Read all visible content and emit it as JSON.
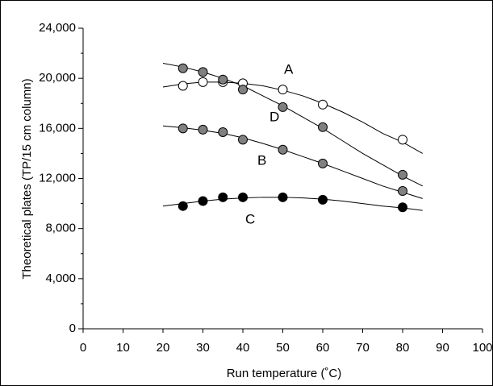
{
  "chart_data": {
    "type": "scatter",
    "xlabel": "Run temperature (˚C)",
    "ylabel": "Theoretical plates (TP/15 cm column)",
    "x": [
      25,
      30,
      35,
      40,
      50,
      60,
      80
    ],
    "fit_x": [
      20,
      25,
      30,
      35,
      40,
      45,
      50,
      55,
      60,
      65,
      70,
      75,
      80,
      85
    ],
    "series": [
      {
        "name": "A",
        "color": "#ffffff",
        "values": [
          19400,
          19700,
          19700,
          19600,
          19100,
          17900,
          15100
        ],
        "fit_values": [
          19300,
          19550,
          19700,
          19700,
          19600,
          19400,
          19050,
          18600,
          18000,
          17300,
          16500,
          15600,
          14900,
          14000
        ]
      },
      {
        "name": "D",
        "color": "#808080",
        "values": [
          20800,
          20500,
          19900,
          19100,
          17700,
          16100,
          12300
        ],
        "fit_values": [
          21200,
          20900,
          20500,
          20000,
          19400,
          18600,
          17800,
          16900,
          16000,
          15000,
          14000,
          13100,
          12200,
          11400
        ]
      },
      {
        "name": "B",
        "color": "#808080",
        "values": [
          16000,
          15900,
          15700,
          15100,
          14300,
          13200,
          11000
        ],
        "fit_values": [
          16200,
          16050,
          15850,
          15600,
          15250,
          14800,
          14300,
          13750,
          13200,
          12600,
          12000,
          11400,
          10900,
          10400
        ]
      },
      {
        "name": "C",
        "color": "#000000",
        "values": [
          9800,
          10200,
          10500,
          10500,
          10500,
          10300,
          9700
        ],
        "fit_values": [
          9800,
          10000,
          10200,
          10350,
          10450,
          10500,
          10500,
          10450,
          10350,
          10200,
          10000,
          9800,
          9650,
          9450
        ]
      }
    ],
    "xlim": [
      0,
      100
    ],
    "xticks": [
      0,
      10,
      20,
      30,
      40,
      50,
      60,
      70,
      80,
      90,
      100
    ],
    "ylim": [
      0,
      24000
    ],
    "yticks": [
      0,
      {
        "value": 4000,
        "label": "4,000"
      },
      {
        "value": 8000,
        "label": "8,000"
      },
      {
        "value": 12000,
        "label": "12,000"
      },
      {
        "value": 16000,
        "label": "16,000"
      },
      {
        "value": 20000,
        "label": "20,000"
      },
      {
        "value": 24000,
        "label": "24,000"
      }
    ]
  }
}
